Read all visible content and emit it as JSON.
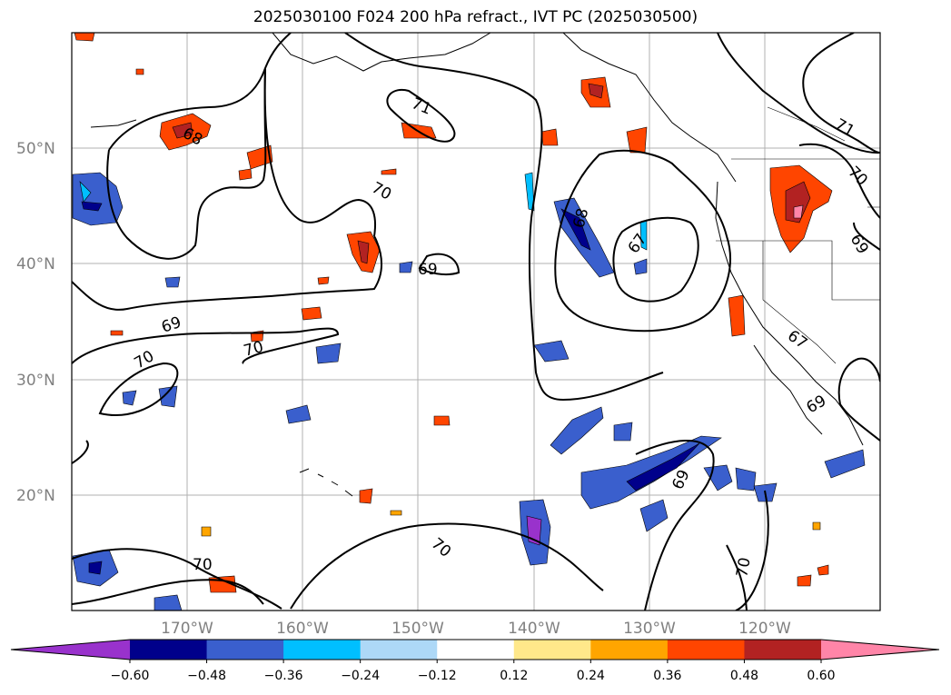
{
  "title": "2025030100 F024 200 hPa refract., IVT PC (2025030500)",
  "map": {
    "lat_labels": [
      {
        "label": "50°N",
        "lat": 50
      },
      {
        "label": "40°N",
        "lat": 40
      },
      {
        "label": "30°N",
        "lat": 30
      },
      {
        "label": "20°N",
        "lat": 20
      }
    ],
    "lon_labels": [
      {
        "label": "170°W",
        "lon": -170
      },
      {
        "label": "160°W",
        "lon": -160
      },
      {
        "label": "150°W",
        "lon": -150
      },
      {
        "label": "140°W",
        "lon": -140
      },
      {
        "label": "130°W",
        "lon": -130
      },
      {
        "label": "120°W",
        "lon": -120
      }
    ],
    "contour_labels": [
      "68",
      "71",
      "70",
      "69",
      "69",
      "70",
      "70",
      "68",
      "67",
      "71",
      "70",
      "69",
      "67",
      "69",
      "69",
      "70",
      "70"
    ]
  },
  "colorbar": {
    "ticks": [
      "−0.60",
      "−0.48",
      "−0.36",
      "−0.24",
      "−0.12",
      "0.12",
      "0.24",
      "0.36",
      "0.48",
      "0.60"
    ],
    "colors": [
      "#9932CC",
      "#00008B",
      "#3A5FCD",
      "#00BFFF",
      "#ADD8F7",
      "#FFFFFF",
      "#FFE88A",
      "#FFA500",
      "#FF4500",
      "#B22222",
      "#FF85A8"
    ]
  }
}
